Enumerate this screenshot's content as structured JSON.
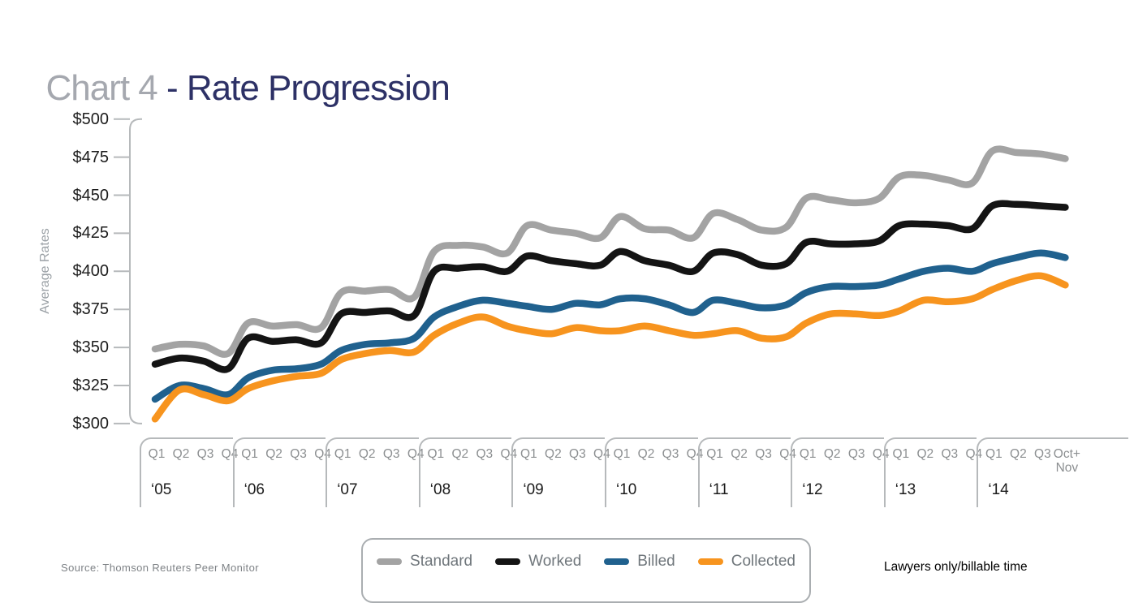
{
  "title": {
    "gray_part": "Chart 4 ",
    "accent_part": "- Rate Progression"
  },
  "colors": {
    "title_gray": "#a5a8af",
    "title_navy": "#2d3166",
    "axis_line": "#b6b9bb",
    "standard_line": "#a3a3a3",
    "worked_line": "#141414",
    "billed_line": "#20618e",
    "collected_line": "#f7941e"
  },
  "y_axis": {
    "label": "Average Rates",
    "ticks": [
      {
        "label": "$500",
        "value": 500
      },
      {
        "label": "$475",
        "value": 475
      },
      {
        "label": "$450",
        "value": 450
      },
      {
        "label": "$425",
        "value": 425
      },
      {
        "label": "$400",
        "value": 400
      },
      {
        "label": "$375",
        "value": 375
      },
      {
        "label": "$350",
        "value": 350
      },
      {
        "label": "$325",
        "value": 325
      },
      {
        "label": "$300",
        "value": 300
      }
    ]
  },
  "x_axis": {
    "years": [
      {
        "label": "‘05",
        "quarters": [
          "Q1",
          "Q2",
          "Q3",
          "Q4"
        ]
      },
      {
        "label": "‘06",
        "quarters": [
          "Q1",
          "Q2",
          "Q3",
          "Q4"
        ]
      },
      {
        "label": "‘07",
        "quarters": [
          "Q1",
          "Q2",
          "Q3",
          "Q4"
        ]
      },
      {
        "label": "‘08",
        "quarters": [
          "Q1",
          "Q2",
          "Q3",
          "Q4"
        ]
      },
      {
        "label": "‘09",
        "quarters": [
          "Q1",
          "Q2",
          "Q3",
          "Q4"
        ]
      },
      {
        "label": "‘10",
        "quarters": [
          "Q1",
          "Q2",
          "Q3",
          "Q4"
        ]
      },
      {
        "label": "‘11",
        "quarters": [
          "Q1",
          "Q2",
          "Q3",
          "Q4"
        ]
      },
      {
        "label": "‘12",
        "quarters": [
          "Q1",
          "Q2",
          "Q3",
          "Q4"
        ]
      },
      {
        "label": "‘13",
        "quarters": [
          "Q1",
          "Q2",
          "Q3",
          "Q4"
        ]
      },
      {
        "label": "‘14",
        "quarters": [
          "Q1",
          "Q2",
          "Q3",
          "Oct+|Nov"
        ]
      }
    ]
  },
  "legend": {
    "entries": [
      "Standard",
      "Worked",
      "Billed",
      "Collected"
    ]
  },
  "footer": {
    "source": "Source: Thomson Reuters Peer Monitor",
    "note": "Lawyers only/billable time"
  },
  "chart_data": {
    "type": "line",
    "title": "Chart 4 - Rate Progression",
    "xlabel": "",
    "ylabel": "Average Rates",
    "ylim": [
      300,
      500
    ],
    "ytick_interval": 25,
    "grid": false,
    "legend_position": "bottom",
    "categories": [
      "'05 Q1",
      "'05 Q2",
      "'05 Q3",
      "'05 Q4",
      "'06 Q1",
      "'06 Q2",
      "'06 Q3",
      "'06 Q4",
      "'07 Q1",
      "'07 Q2",
      "'07 Q3",
      "'07 Q4",
      "'08 Q1",
      "'08 Q2",
      "'08 Q3",
      "'08 Q4",
      "'09 Q1",
      "'09 Q2",
      "'09 Q3",
      "'09 Q4",
      "'10 Q1",
      "'10 Q2",
      "'10 Q3",
      "'10 Q4",
      "'11 Q1",
      "'11 Q2",
      "'11 Q3",
      "'11 Q4",
      "'12 Q1",
      "'12 Q2",
      "'12 Q3",
      "'12 Q4",
      "'13 Q1",
      "'13 Q2",
      "'13 Q3",
      "'13 Q4",
      "'14 Q1",
      "'14 Q2",
      "'14 Q3",
      "'14 Oct+Nov"
    ],
    "series": [
      {
        "name": "Standard",
        "color": "#a3a3a3",
        "values": [
          349,
          352,
          351,
          346,
          366,
          364,
          365,
          363,
          386,
          387,
          388,
          383,
          413,
          417,
          416,
          412,
          430,
          427,
          425,
          422,
          436,
          428,
          427,
          422,
          438,
          434,
          427,
          429,
          448,
          447,
          445,
          448,
          462,
          463,
          460,
          458,
          479,
          478,
          477,
          474
        ]
      },
      {
        "name": "Worked",
        "color": "#141414",
        "values": [
          339,
          343,
          341,
          336,
          356,
          354,
          355,
          353,
          372,
          373,
          374,
          371,
          400,
          402,
          403,
          400,
          410,
          407,
          405,
          404,
          413,
          407,
          404,
          400,
          412,
          411,
          404,
          405,
          419,
          418,
          418,
          420,
          430,
          431,
          430,
          428,
          443,
          444,
          443,
          442
        ]
      },
      {
        "name": "Billed",
        "color": "#20618e",
        "values": [
          316,
          325,
          323,
          319,
          330,
          335,
          336,
          339,
          348,
          352,
          353,
          356,
          370,
          377,
          381,
          379,
          377,
          375,
          379,
          378,
          382,
          382,
          378,
          373,
          381,
          379,
          376,
          378,
          386,
          390,
          390,
          391,
          395,
          400,
          402,
          400,
          405,
          409,
          412,
          409
        ]
      },
      {
        "name": "Collected",
        "color": "#f7941e",
        "values": [
          303,
          322,
          319,
          315,
          323,
          328,
          331,
          333,
          342,
          346,
          348,
          347,
          358,
          366,
          370,
          364,
          361,
          359,
          363,
          361,
          361,
          364,
          361,
          358,
          359,
          361,
          356,
          357,
          366,
          372,
          372,
          371,
          374,
          381,
          380,
          382,
          388,
          394,
          397,
          391
        ]
      }
    ]
  }
}
